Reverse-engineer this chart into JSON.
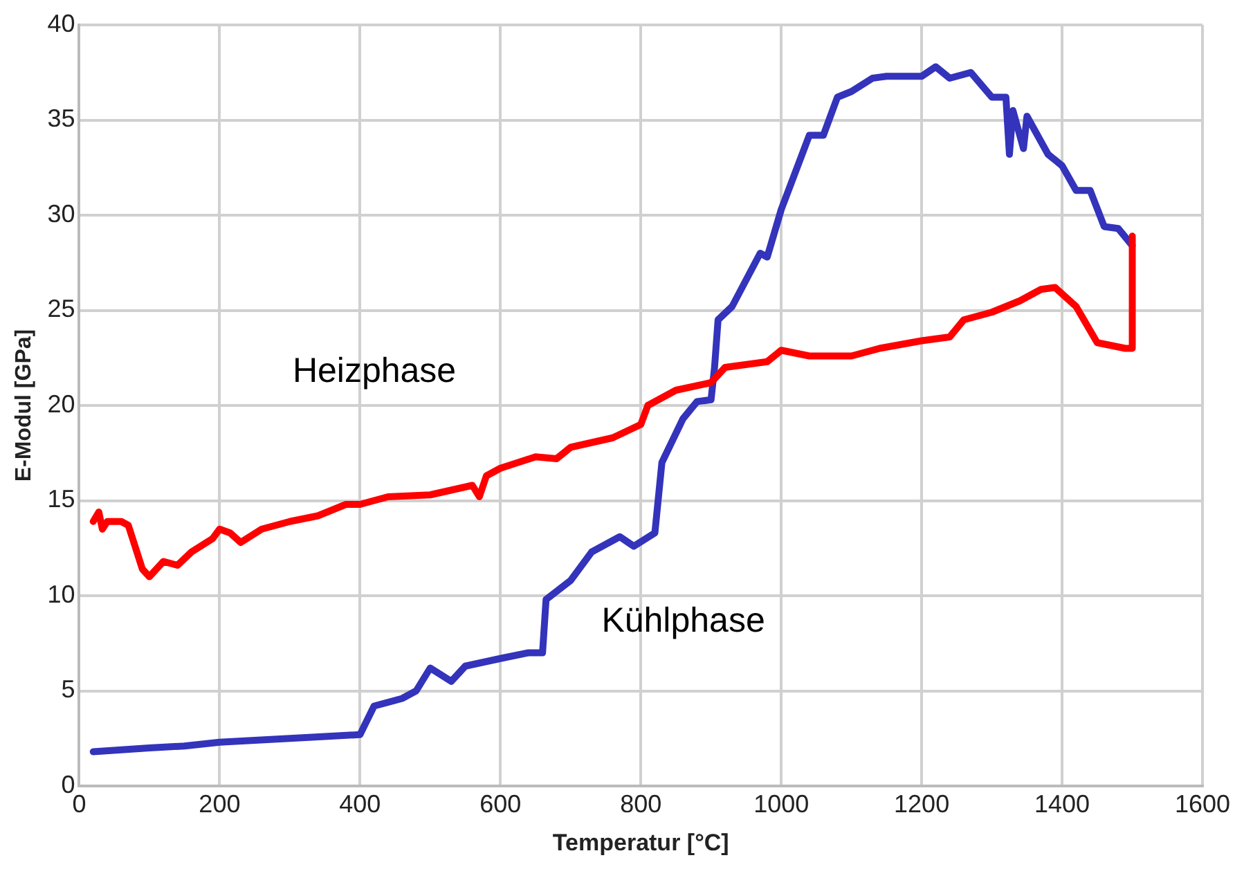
{
  "chart_data": {
    "type": "line",
    "xlabel": "Temperatur [°C]",
    "ylabel": "E-Modul [GPa]",
    "xlim": [
      0,
      1600
    ],
    "xticks": [
      0,
      200,
      400,
      600,
      800,
      1000,
      1200,
      1400,
      1600
    ],
    "ylim": [
      0,
      40
    ],
    "yticks": [
      0,
      5,
      10,
      15,
      20,
      25,
      30,
      35,
      40
    ],
    "grid": true,
    "legend": false,
    "marker": "none",
    "line_style": "solid",
    "series": [
      {
        "name": "Heizphase",
        "color": "#ff0000",
        "x": [
          20,
          28,
          33,
          40,
          60,
          70,
          90,
          100,
          120,
          140,
          160,
          190,
          200,
          215,
          230,
          260,
          300,
          340,
          380,
          400,
          440,
          500,
          560,
          570,
          580,
          600,
          650,
          680,
          700,
          760,
          800,
          810,
          850,
          900,
          920,
          980,
          1000,
          1040,
          1100,
          1140,
          1200,
          1240,
          1260,
          1300,
          1340,
          1370,
          1390,
          1420,
          1450,
          1490,
          1500,
          1500
        ],
        "values": [
          13.9,
          14.4,
          13.5,
          13.9,
          13.9,
          13.7,
          11.4,
          11.0,
          11.8,
          11.6,
          12.3,
          13.0,
          13.5,
          13.3,
          12.8,
          13.5,
          13.9,
          14.2,
          14.8,
          14.8,
          15.2,
          15.3,
          15.8,
          15.2,
          16.3,
          16.7,
          17.3,
          17.2,
          17.8,
          18.3,
          19.0,
          20.0,
          20.8,
          21.2,
          22.0,
          22.3,
          22.9,
          22.6,
          22.6,
          23.0,
          23.4,
          23.6,
          24.5,
          24.9,
          25.5,
          26.1,
          26.2,
          25.2,
          23.3,
          23.0,
          23.0,
          28.9
        ]
      },
      {
        "name": "Kühlphase",
        "color": "#3333bb",
        "x": [
          20,
          60,
          100,
          150,
          200,
          300,
          350,
          400,
          420,
          460,
          480,
          500,
          530,
          550,
          600,
          640,
          660,
          665,
          700,
          730,
          770,
          790,
          820,
          830,
          860,
          880,
          900,
          905,
          910,
          930,
          970,
          980,
          1000,
          1040,
          1060,
          1080,
          1100,
          1130,
          1150,
          1200,
          1220,
          1240,
          1270,
          1300,
          1320,
          1325,
          1330,
          1345,
          1350,
          1380,
          1400,
          1420,
          1440,
          1460,
          1480,
          1500
        ],
        "values": [
          1.8,
          1.9,
          2.0,
          2.1,
          2.3,
          2.5,
          2.6,
          2.7,
          4.2,
          4.6,
          5.0,
          6.2,
          5.5,
          6.3,
          6.7,
          7.0,
          7.0,
          9.8,
          10.8,
          12.3,
          13.1,
          12.6,
          13.3,
          17.0,
          19.3,
          20.2,
          20.3,
          22.0,
          24.5,
          25.2,
          28.0,
          27.8,
          30.3,
          34.2,
          34.2,
          36.2,
          36.5,
          37.2,
          37.3,
          37.3,
          37.8,
          37.2,
          37.5,
          36.2,
          36.2,
          33.2,
          35.5,
          33.5,
          35.2,
          33.2,
          32.6,
          31.3,
          31.3,
          29.4,
          29.3,
          28.4
        ]
      }
    ]
  }
}
